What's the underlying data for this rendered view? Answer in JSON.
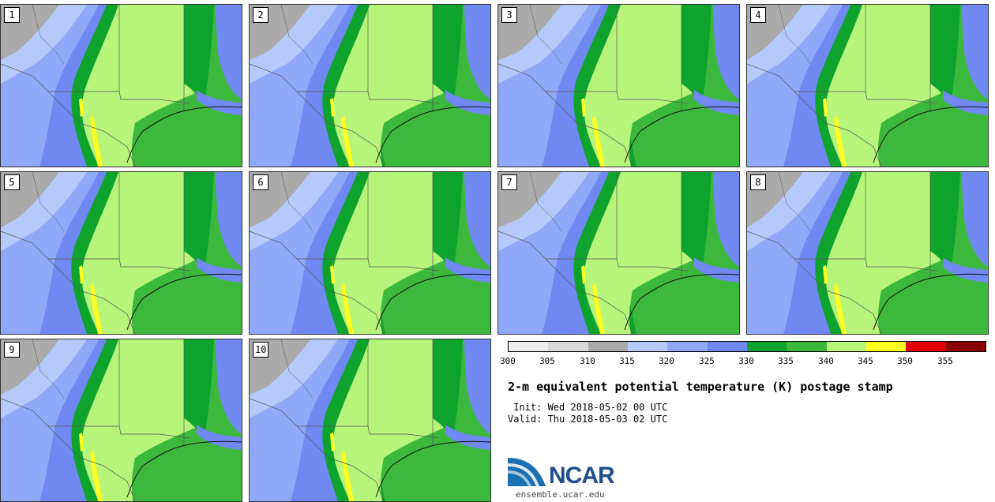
{
  "panels": [
    {
      "label": "1"
    },
    {
      "label": "2"
    },
    {
      "label": "3"
    },
    {
      "label": "4"
    },
    {
      "label": "5"
    },
    {
      "label": "6"
    },
    {
      "label": "7"
    },
    {
      "label": "8"
    },
    {
      "label": "9"
    },
    {
      "label": "10"
    }
  ],
  "colorbar": {
    "colors": [
      "#ececec",
      "#d8d8d8",
      "#aaaaaa",
      "#b6c9fb",
      "#8fa8f8",
      "#7088f2",
      "#0ea32c",
      "#3cb93c",
      "#b7f57a",
      "#ffff22",
      "#e00000",
      "#8b0000"
    ],
    "ticks": [
      "300",
      "305",
      "310",
      "315",
      "320",
      "325",
      "330",
      "335",
      "340",
      "345",
      "350",
      "355"
    ]
  },
  "title": "2-m equivalent potential temperature (K) postage stamp",
  "init_text": " Init: Wed 2018-05-02 00 UTC",
  "valid_text": "Valid: Thu 2018-05-03 02 UTC",
  "logo": {
    "name": "NCAR",
    "url": "ensemble.ucar.edu"
  }
}
